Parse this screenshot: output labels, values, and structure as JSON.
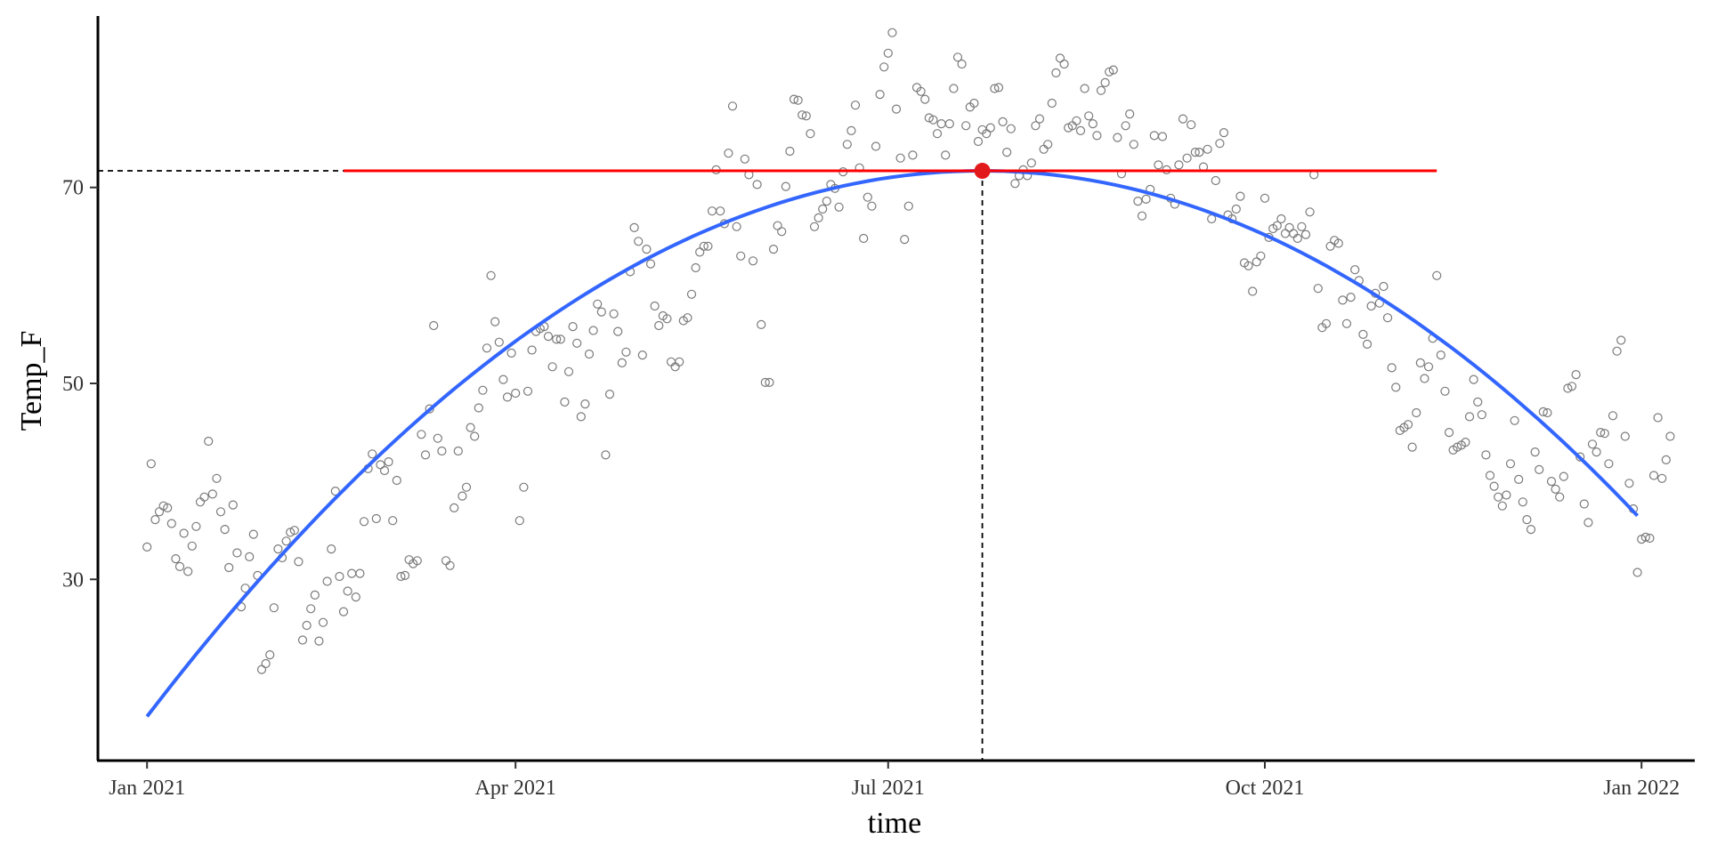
{
  "chart_data": {
    "type": "scatter",
    "xlabel": "time",
    "ylabel": "Temp_F",
    "x_ticks": [
      "2021-01-01",
      "2021-04-01",
      "2021-07-01",
      "2021-10-01",
      "2022-01-01"
    ],
    "x_tick_labels": [
      "Jan 2021",
      "Apr 2021",
      "Jul 2021",
      "Oct 2021",
      "Jan 2022"
    ],
    "y_ticks": [
      30,
      50,
      70
    ],
    "y_tick_labels": [
      "30",
      "50",
      "70"
    ],
    "xlim": [
      "2020-12-20",
      "2022-01-14"
    ],
    "ylim": [
      11.5,
      87.5
    ],
    "grid": false,
    "legend": "none",
    "colors": {
      "points": "#7a7a7a",
      "fit": "#3366ff",
      "peak_line": "#ff0000",
      "peak_point": "#e31a1c",
      "guides": "#000000"
    },
    "series": [
      {
        "kind": "daily observations (open circles)",
        "x_start": "2021-01-01",
        "x_step_days": 1,
        "y": [
          33.3,
          41.8,
          36.1,
          36.9,
          37.5,
          37.3,
          35.7,
          32.1,
          31.3,
          34.7,
          30.8,
          33.4,
          35.4,
          37.9,
          38.4,
          44.1,
          38.7,
          40.3,
          36.9,
          35.1,
          31.2,
          37.6,
          32.7,
          27.2,
          29.1,
          32.3,
          34.6,
          30.4,
          20.8,
          21.4,
          22.3,
          27.1,
          33.1,
          32.2,
          33.9,
          34.8,
          35.0,
          31.8,
          23.8,
          25.3,
          27.0,
          28.4,
          23.7,
          25.6,
          29.8,
          33.1,
          39.0,
          30.3,
          26.7,
          28.8,
          30.6,
          28.2,
          30.6,
          35.9,
          41.3,
          42.8,
          36.2,
          41.7,
          41.1,
          42.0,
          36.0,
          40.1,
          30.3,
          30.4,
          32.0,
          31.6,
          31.9,
          44.8,
          42.7,
          47.4,
          55.9,
          44.4,
          43.1,
          31.9,
          31.4,
          37.3,
          43.1,
          38.5,
          39.4,
          45.5,
          44.6,
          47.5,
          49.3,
          53.6,
          61.0,
          56.3,
          54.2,
          50.4,
          48.6,
          53.1,
          49.0,
          36.0,
          39.4,
          49.2,
          53.4,
          55.3,
          55.6,
          55.8,
          54.8,
          51.7,
          54.5,
          54.5,
          48.1,
          51.2,
          55.8,
          54.1,
          46.6,
          47.9,
          53.0,
          55.4,
          58.1,
          57.3,
          42.7,
          48.9,
          57.1,
          55.3,
          52.1,
          53.2,
          61.4,
          65.9,
          64.5,
          52.9,
          63.7,
          62.2,
          57.9,
          55.9,
          56.9,
          56.6,
          52.2,
          51.7,
          52.2,
          56.4,
          56.7,
          59.1,
          61.8,
          63.4,
          64.0,
          64.0,
          67.6,
          71.8,
          67.6,
          66.3,
          73.5,
          78.3,
          66.0,
          63.0,
          72.9,
          71.3,
          62.5,
          70.3,
          56.0,
          50.1,
          50.1,
          63.7,
          66.1,
          65.5,
          70.1,
          73.7,
          79.0,
          78.9,
          77.4,
          77.3,
          75.5,
          66.0,
          66.9,
          67.8,
          68.6,
          70.3,
          69.9,
          68.0,
          71.6,
          74.4,
          75.8,
          78.4,
          72.0,
          64.8,
          69.0,
          68.1,
          74.2,
          79.5,
          82.3,
          83.7,
          85.8,
          78.0,
          73.0,
          64.7,
          68.1,
          73.3,
          80.2,
          79.8,
          79.0,
          77.1,
          76.9,
          75.5,
          76.5,
          73.3,
          76.5,
          80.1,
          83.3,
          82.6,
          76.3,
          78.2,
          78.6,
          74.7,
          75.9,
          75.5,
          76.1,
          80.1,
          80.2,
          76.7,
          73.6,
          76.0,
          70.4,
          71.2,
          71.8,
          71.2,
          72.5,
          76.3,
          77.0,
          73.9,
          74.4,
          78.6,
          81.7,
          83.2,
          82.6,
          76.1,
          76.3,
          76.8,
          75.8,
          80.1,
          77.3,
          76.5,
          75.3,
          79.9,
          80.7,
          81.8,
          82.0,
          75.1,
          71.4,
          76.3,
          77.5,
          74.4,
          68.6,
          67.1,
          68.8,
          69.8,
          75.3,
          72.3,
          75.2,
          71.8,
          68.9,
          68.3,
          72.3,
          77.0,
          73.0,
          76.4,
          73.6,
          73.6,
          72.1,
          73.9,
          66.8,
          70.7,
          74.5,
          75.6,
          67.2,
          66.8,
          67.8,
          69.1,
          62.3,
          62.0,
          59.4,
          62.4,
          63.0,
          68.9,
          64.9,
          65.8,
          66.1,
          66.8,
          65.3,
          65.9,
          65.3,
          64.8,
          66.0,
          65.2,
          67.5,
          71.3,
          59.7,
          55.7,
          56.1,
          64.0,
          64.6,
          64.3,
          58.5,
          56.1,
          58.8,
          61.6,
          60.5,
          55.0,
          54.0,
          57.9,
          59.2,
          58.2,
          59.9,
          56.7,
          51.6,
          49.6,
          45.2,
          45.5,
          45.8,
          43.5,
          47.0,
          52.1,
          50.5,
          51.7,
          54.6,
          61.0,
          52.9,
          49.2,
          45.0,
          43.2,
          43.5,
          43.7,
          44.0,
          46.6,
          50.4,
          48.1,
          46.8,
          42.7,
          40.6,
          39.5,
          38.4,
          37.5,
          38.6,
          41.8,
          46.2,
          40.2,
          37.9,
          36.1,
          35.1,
          43.0,
          41.2,
          47.1,
          47.0,
          40.0,
          39.2,
          38.4,
          40.5,
          49.5,
          49.7,
          50.9,
          42.5,
          37.7,
          35.8,
          43.8,
          43.0,
          45.0,
          44.9,
          41.8,
          46.7,
          53.3,
          54.4,
          44.6,
          39.8,
          37.2,
          30.7,
          34.1,
          34.3,
          34.2,
          40.6,
          46.5,
          40.3,
          42.2,
          44.6
        ]
      },
      {
        "kind": "quadratic fit",
        "x": [
          "2021-01-01",
          "2021-12-31"
        ],
        "curve": "parabola",
        "vertex": [
          "2021-07-24",
          71.7
        ],
        "y_range": [
          16.0,
          36.5
        ]
      }
    ],
    "annotations": {
      "peak": {
        "x": "2021-07-24",
        "y": 71.7
      },
      "peak_line_x": [
        "2021-02-18",
        "2021-11-12"
      ]
    }
  }
}
